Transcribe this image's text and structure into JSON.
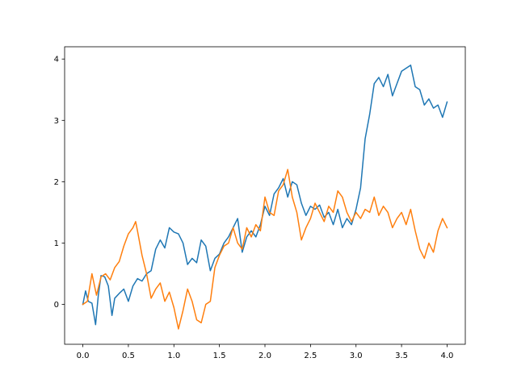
{
  "chart_data": {
    "type": "line",
    "title": "",
    "xlabel": "",
    "ylabel": "",
    "xlim": [
      -0.2,
      4.2
    ],
    "ylim": [
      -0.65,
      4.2
    ],
    "xticks": [
      0.0,
      0.5,
      1.0,
      1.5,
      2.0,
      2.5,
      3.0,
      3.5,
      4.0
    ],
    "xtick_labels": [
      "0.0",
      "0.5",
      "1.0",
      "1.5",
      "2.0",
      "2.5",
      "3.0",
      "3.5",
      "4.0"
    ],
    "yticks": [
      0,
      1,
      2,
      3,
      4
    ],
    "ytick_labels": [
      "0",
      "1",
      "2",
      "3",
      "4"
    ],
    "grid": false,
    "legend": "none",
    "series": [
      {
        "color": "#1f77b4",
        "x": [
          0.0,
          0.03,
          0.06,
          0.1,
          0.14,
          0.17,
          0.2,
          0.24,
          0.28,
          0.32,
          0.35,
          0.4,
          0.45,
          0.5,
          0.55,
          0.6,
          0.65,
          0.7,
          0.75,
          0.8,
          0.85,
          0.9,
          0.95,
          1.0,
          1.05,
          1.1,
          1.15,
          1.2,
          1.25,
          1.3,
          1.35,
          1.4,
          1.45,
          1.5,
          1.55,
          1.6,
          1.65,
          1.7,
          1.75,
          1.8,
          1.85,
          1.9,
          1.95,
          2.0,
          2.05,
          2.1,
          2.15,
          2.2,
          2.25,
          2.3,
          2.35,
          2.4,
          2.45,
          2.5,
          2.55,
          2.6,
          2.65,
          2.7,
          2.75,
          2.8,
          2.85,
          2.9,
          2.95,
          3.0,
          3.05,
          3.1,
          3.15,
          3.2,
          3.25,
          3.3,
          3.35,
          3.4,
          3.45,
          3.5,
          3.55,
          3.6,
          3.65,
          3.7,
          3.75,
          3.8,
          3.85,
          3.9,
          3.95,
          4.0
        ],
        "y": [
          0.0,
          0.22,
          0.05,
          0.02,
          -0.33,
          0.15,
          0.47,
          0.45,
          0.3,
          -0.18,
          0.1,
          0.18,
          0.25,
          0.05,
          0.3,
          0.42,
          0.38,
          0.5,
          0.55,
          0.9,
          1.05,
          0.92,
          1.25,
          1.18,
          1.15,
          1.0,
          0.65,
          0.75,
          0.68,
          1.05,
          0.95,
          0.55,
          0.75,
          0.82,
          1.0,
          1.1,
          1.25,
          1.4,
          0.85,
          1.1,
          1.2,
          1.1,
          1.3,
          1.6,
          1.45,
          1.8,
          1.9,
          2.05,
          1.75,
          2.0,
          1.95,
          1.65,
          1.45,
          1.6,
          1.55,
          1.62,
          1.42,
          1.5,
          1.3,
          1.55,
          1.25,
          1.4,
          1.3,
          1.55,
          1.9,
          2.7,
          3.1,
          3.6,
          3.7,
          3.55,
          3.75,
          3.4,
          3.6,
          3.8,
          3.85,
          3.9,
          3.55,
          3.5,
          3.25,
          3.35,
          3.2,
          3.25,
          3.05,
          3.3
        ]
      },
      {
        "color": "#ff7f0e",
        "x": [
          0.0,
          0.05,
          0.1,
          0.15,
          0.2,
          0.25,
          0.3,
          0.35,
          0.4,
          0.45,
          0.5,
          0.55,
          0.58,
          0.6,
          0.65,
          0.7,
          0.75,
          0.8,
          0.85,
          0.9,
          0.95,
          1.0,
          1.05,
          1.1,
          1.15,
          1.2,
          1.25,
          1.3,
          1.35,
          1.4,
          1.45,
          1.5,
          1.55,
          1.6,
          1.65,
          1.7,
          1.75,
          1.8,
          1.85,
          1.9,
          1.95,
          2.0,
          2.05,
          2.1,
          2.15,
          2.2,
          2.25,
          2.3,
          2.35,
          2.4,
          2.45,
          2.5,
          2.55,
          2.6,
          2.65,
          2.7,
          2.75,
          2.8,
          2.85,
          2.9,
          2.95,
          3.0,
          3.05,
          3.1,
          3.15,
          3.2,
          3.25,
          3.3,
          3.35,
          3.4,
          3.45,
          3.5,
          3.55,
          3.6,
          3.65,
          3.7,
          3.75,
          3.8,
          3.85,
          3.9,
          3.95,
          4.0
        ],
        "y": [
          0.0,
          0.05,
          0.5,
          0.15,
          0.45,
          0.5,
          0.4,
          0.6,
          0.7,
          0.95,
          1.15,
          1.25,
          1.35,
          1.2,
          0.8,
          0.5,
          0.1,
          0.25,
          0.35,
          0.05,
          0.2,
          -0.05,
          -0.4,
          -0.1,
          0.25,
          0.05,
          -0.25,
          -0.3,
          0.0,
          0.05,
          0.6,
          0.8,
          0.95,
          1.0,
          1.25,
          1.0,
          0.9,
          1.25,
          1.1,
          1.3,
          1.2,
          1.75,
          1.5,
          1.45,
          1.85,
          1.95,
          2.2,
          1.75,
          1.5,
          1.05,
          1.25,
          1.4,
          1.65,
          1.5,
          1.35,
          1.6,
          1.5,
          1.85,
          1.75,
          1.5,
          1.35,
          1.5,
          1.4,
          1.55,
          1.5,
          1.75,
          1.45,
          1.6,
          1.5,
          1.25,
          1.4,
          1.5,
          1.3,
          1.55,
          1.2,
          0.9,
          0.75,
          1.0,
          0.85,
          1.2,
          1.4,
          1.25
        ]
      }
    ]
  }
}
